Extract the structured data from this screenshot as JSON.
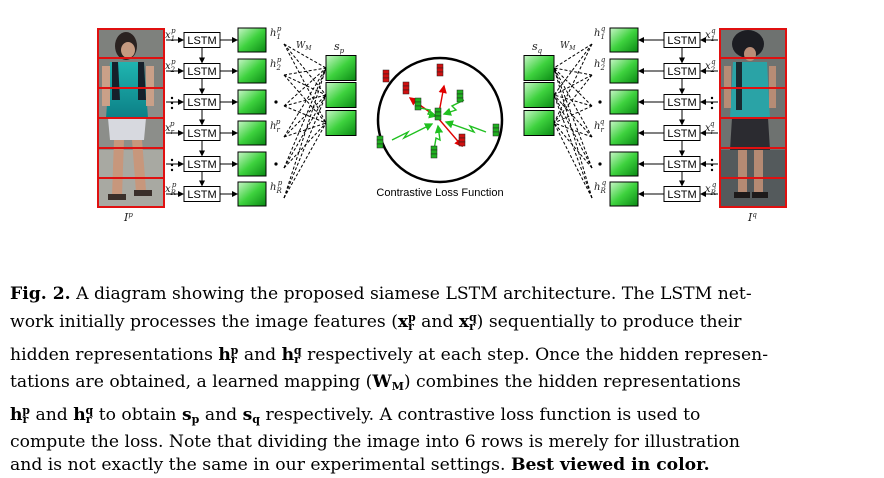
{
  "diagram": {
    "lstm_label": "LSTM",
    "loss_label": "Contrastive Loss Function",
    "left": {
      "image_label": "I",
      "image_label_sup": "p",
      "inputs": [
        "x1p",
        "x2p",
        "",
        "xrp",
        "",
        "xRp"
      ],
      "hidden": [
        "h1p",
        "h2p",
        "",
        "hrp",
        "",
        "hRp"
      ],
      "mapping_label": "WM",
      "s_label": "sp"
    },
    "right": {
      "image_label": "I",
      "image_label_sup": "q",
      "inputs": [
        "x1q",
        "x2q",
        "",
        "xrq",
        "",
        "xRq"
      ],
      "hidden": [
        "h1q",
        "h2q",
        "",
        "hrq",
        "",
        "hRq"
      ],
      "mapping_label": "WM",
      "s_label": "sq"
    }
  },
  "caption": {
    "fig_label": "Fig. 2.",
    "line1": "A diagram showing the proposed siamese LSTM architecture. The LSTM net-",
    "line2a": "work initially processes the image features (",
    "line2b": " and ",
    "line2c": ") sequentially to produce their",
    "line3a": "hidden representations ",
    "line3b": " and ",
    "line3c": " respectively at each step. Once the hidden represen-",
    "line4a": "tations are obtained, a learned mapping (",
    "line4b": ") combines the hidden representations",
    "line5a": " and ",
    "line5b": " to obtain ",
    "line5c": " and ",
    "line5d": " respectively. A contrastive loss function is used to",
    "line6": "compute the loss. Note that dividing the image into 6 rows is merely for illustration",
    "line7": "and is not exactly the same in our experimental settings.",
    "bold_end": "Best viewed in color."
  }
}
